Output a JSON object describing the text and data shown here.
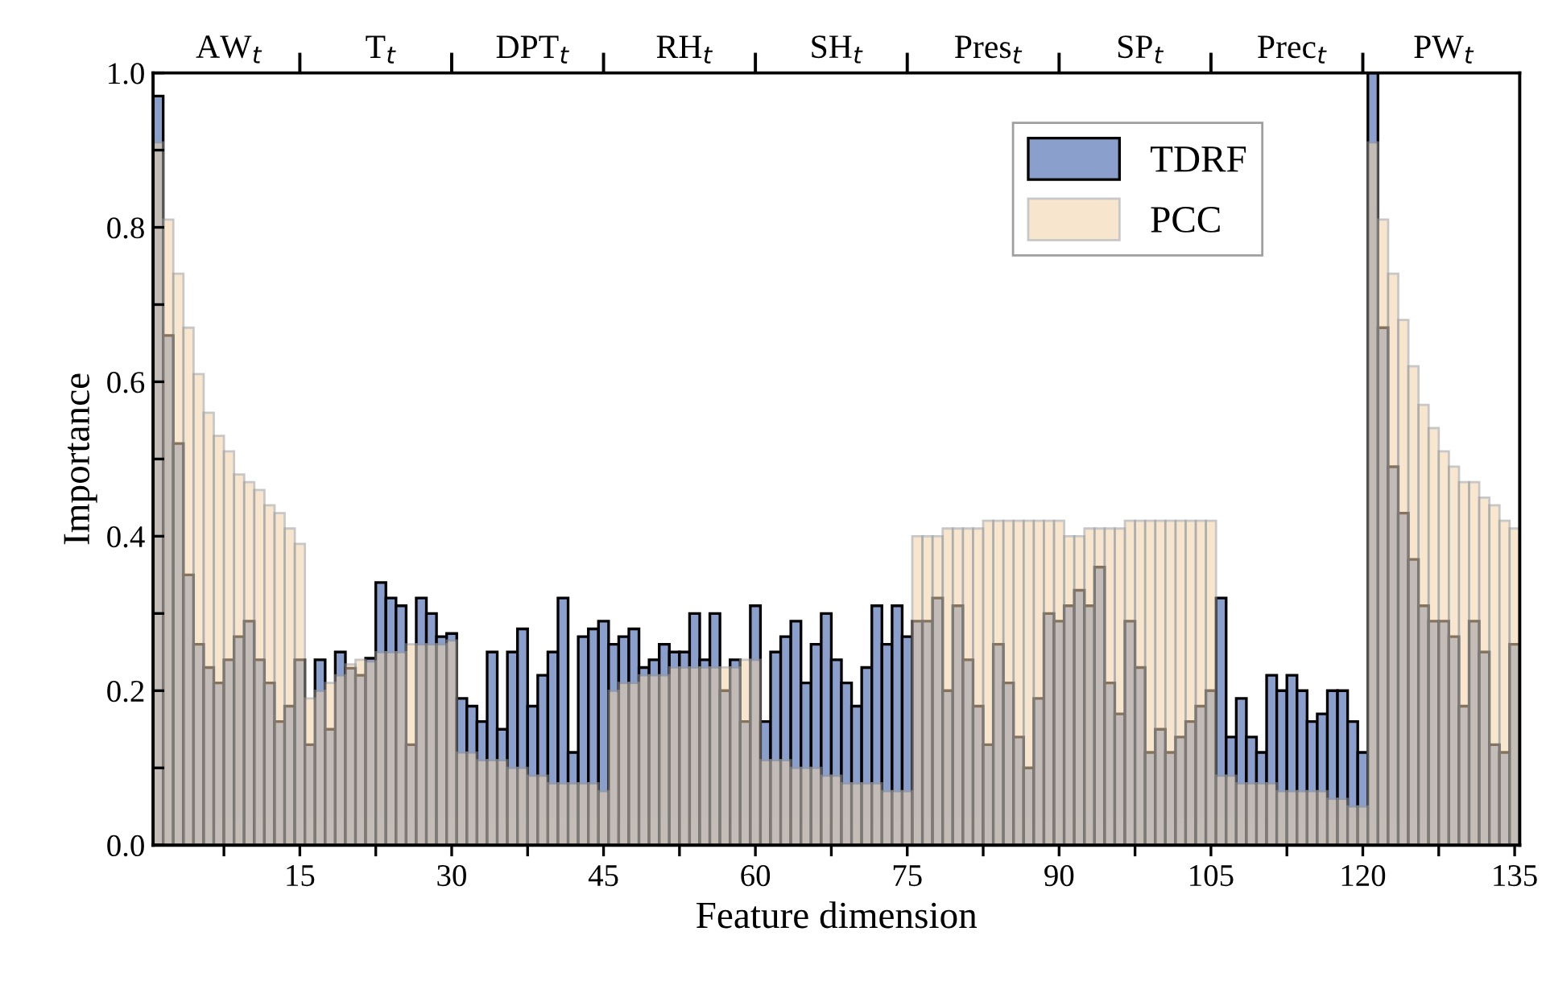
{
  "chart_data": {
    "type": "bar",
    "xlabel": "Feature dimension",
    "ylabel": "Importance",
    "xlim": [
      0.5,
      135.5
    ],
    "ylim": [
      0,
      1
    ],
    "x": [
      1,
      2,
      3,
      4,
      5,
      6,
      7,
      8,
      9,
      10,
      11,
      12,
      13,
      14,
      15,
      16,
      17,
      18,
      19,
      20,
      21,
      22,
      23,
      24,
      25,
      26,
      27,
      28,
      29,
      30,
      31,
      32,
      33,
      34,
      35,
      36,
      37,
      38,
      39,
      40,
      41,
      42,
      43,
      44,
      45,
      46,
      47,
      48,
      49,
      50,
      51,
      52,
      53,
      54,
      55,
      56,
      57,
      58,
      59,
      60,
      61,
      62,
      63,
      64,
      65,
      66,
      67,
      68,
      69,
      70,
      71,
      72,
      73,
      74,
      75,
      76,
      77,
      78,
      79,
      80,
      81,
      82,
      83,
      84,
      85,
      86,
      87,
      88,
      89,
      90,
      91,
      92,
      93,
      94,
      95,
      96,
      97,
      98,
      99,
      100,
      101,
      102,
      103,
      104,
      105,
      106,
      107,
      108,
      109,
      110,
      111,
      112,
      113,
      114,
      115,
      116,
      117,
      118,
      119,
      120,
      121,
      122,
      123,
      124,
      125,
      126,
      127,
      128,
      129,
      130,
      131,
      132,
      133,
      134,
      135
    ],
    "xticks": [
      {
        "value": 7.5,
        "label": null
      },
      15,
      {
        "value": 22.5,
        "label": null
      },
      30,
      {
        "value": 37.5,
        "label": null
      },
      45,
      {
        "value": 52.5,
        "label": null
      },
      60,
      {
        "value": 67.5,
        "label": null
      },
      75,
      {
        "value": 82.5,
        "label": null
      },
      90,
      {
        "value": 97.5,
        "label": null
      },
      105,
      {
        "value": 112.5,
        "label": null
      },
      120,
      {
        "value": 127.5,
        "label": null
      },
      135
    ],
    "yticks": [
      {
        "value": 0,
        "label": "0.0"
      },
      {
        "value": 0.1,
        "label": null
      },
      0.2,
      {
        "value": 0.3,
        "label": null
      },
      0.4,
      {
        "value": 0.5,
        "label": null
      },
      0.6,
      {
        "value": 0.7,
        "label": null
      },
      0.8,
      {
        "value": 0.9,
        "label": null
      },
      {
        "value": 1,
        "label": "1.0"
      }
    ],
    "annotations": [
      "AW$_{t}$",
      "T$_{t}$",
      "DPT$_{t}$",
      "RH$_{t}$",
      "SH$_{t}$",
      "Pres$_{t}$",
      "SP$_{t}$",
      "Prec$_{t}$",
      "PW$_{t}$"
    ],
    "legend": "top right",
    "series": [
      {
        "name": "TDRF",
        "color": "#8a9fcc",
        "values": [
          0.97,
          0.66,
          0.52,
          0.35,
          0.26,
          0.23,
          0.21,
          0.24,
          0.27,
          0.29,
          0.24,
          0.21,
          0.16,
          0.18,
          0.24,
          0.13,
          0.24,
          0.15,
          0.25,
          0.229,
          0.22,
          0.242,
          0.34,
          0.32,
          0.31,
          0.13,
          0.32,
          0.3,
          0.27,
          0.274,
          0.19,
          0.18,
          0.16,
          0.25,
          0.15,
          0.25,
          0.28,
          0.18,
          0.22,
          0.25,
          0.32,
          0.12,
          0.27,
          0.28,
          0.29,
          0.26,
          0.27,
          0.28,
          0.23,
          0.24,
          0.26,
          0.25,
          0.25,
          0.3,
          0.24,
          0.3,
          0.2,
          0.24,
          0.16,
          0.31,
          0.16,
          0.25,
          0.27,
          0.29,
          0.21,
          0.26,
          0.3,
          0.24,
          0.21,
          0.18,
          0.23,
          0.31,
          0.26,
          0.31,
          0.27,
          0.29,
          0.29,
          0.32,
          0.2,
          0.31,
          0.24,
          0.18,
          0.13,
          0.26,
          0.21,
          0.14,
          0.1,
          0.19,
          0.3,
          0.29,
          0.31,
          0.33,
          0.31,
          0.36,
          0.21,
          0.17,
          0.29,
          0.23,
          0.12,
          0.15,
          0.12,
          0.14,
          0.16,
          0.18,
          0.2,
          0.32,
          0.14,
          0.19,
          0.14,
          0.12,
          0.22,
          0.2,
          0.22,
          0.2,
          0.16,
          0.17,
          0.2,
          0.2,
          0.16,
          0.12,
          1.0,
          0.67,
          0.49,
          0.43,
          0.37,
          0.31,
          0.29,
          0.29,
          0.27,
          0.18,
          0.29,
          0.25,
          0.13,
          0.12,
          0.26
        ]
      },
      {
        "name": "PCC",
        "color": "#f2d3a6",
        "values": [
          0.91,
          0.81,
          0.74,
          0.67,
          0.61,
          0.56,
          0.53,
          0.51,
          0.48,
          0.47,
          0.46,
          0.44,
          0.43,
          0.41,
          0.39,
          0.19,
          0.2,
          0.21,
          0.22,
          0.234,
          0.24,
          0.238,
          0.25,
          0.25,
          0.25,
          0.26,
          0.26,
          0.26,
          0.26,
          0.265,
          0.12,
          0.12,
          0.11,
          0.11,
          0.11,
          0.1,
          0.1,
          0.09,
          0.09,
          0.08,
          0.08,
          0.08,
          0.08,
          0.08,
          0.07,
          0.2,
          0.21,
          0.21,
          0.22,
          0.22,
          0.22,
          0.23,
          0.23,
          0.23,
          0.23,
          0.23,
          0.23,
          0.23,
          0.24,
          0.24,
          0.11,
          0.11,
          0.11,
          0.1,
          0.1,
          0.1,
          0.09,
          0.09,
          0.08,
          0.08,
          0.08,
          0.08,
          0.07,
          0.07,
          0.07,
          0.4,
          0.4,
          0.4,
          0.41,
          0.41,
          0.41,
          0.41,
          0.42,
          0.42,
          0.42,
          0.42,
          0.42,
          0.42,
          0.42,
          0.42,
          0.4,
          0.4,
          0.41,
          0.41,
          0.41,
          0.41,
          0.42,
          0.42,
          0.42,
          0.42,
          0.42,
          0.42,
          0.42,
          0.42,
          0.42,
          0.09,
          0.09,
          0.08,
          0.08,
          0.08,
          0.08,
          0.07,
          0.07,
          0.07,
          0.07,
          0.07,
          0.06,
          0.06,
          0.05,
          0.05,
          0.91,
          0.81,
          0.74,
          0.68,
          0.62,
          0.57,
          0.54,
          0.51,
          0.49,
          0.47,
          0.47,
          0.45,
          0.44,
          0.42,
          0.41
        ]
      }
    ]
  }
}
